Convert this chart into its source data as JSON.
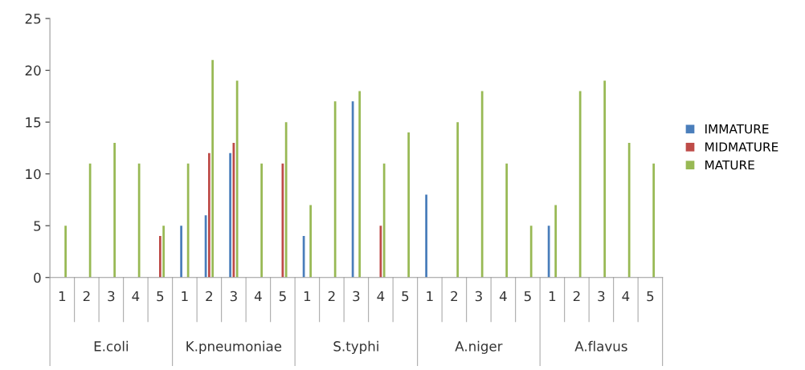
{
  "chart_data": {
    "type": "bar",
    "categories": [
      "1",
      "2",
      "3",
      "4",
      "5",
      "1",
      "2",
      "3",
      "4",
      "5",
      "1",
      "2",
      "3",
      "4",
      "5",
      "1",
      "2",
      "3",
      "4",
      "5",
      "1",
      "2",
      "3",
      "4",
      "5"
    ],
    "annotations": [
      "E.coli",
      "K.pneumoniae",
      "S.typhi",
      "A.niger",
      "A.flavus"
    ],
    "series": [
      {
        "name": "IMMATURE",
        "color": "#4a7ebb",
        "values": [
          0,
          0,
          0,
          0,
          0,
          5,
          6,
          12,
          0,
          0,
          4,
          0,
          17,
          0,
          0,
          8,
          0,
          0,
          0,
          0,
          5,
          0,
          0,
          0,
          0
        ]
      },
      {
        "name": "MIDMATURE",
        "color": "#be4b48",
        "values": [
          0,
          0,
          0,
          0,
          4,
          0,
          12,
          13,
          0,
          11,
          0,
          0,
          0,
          5,
          0,
          0,
          0,
          0,
          0,
          0,
          0,
          0,
          0,
          0,
          0
        ]
      },
      {
        "name": "MATURE",
        "color": "#98b954",
        "values": [
          5,
          11,
          13,
          11,
          5,
          11,
          21,
          19,
          11,
          15,
          7,
          17,
          18,
          11,
          14,
          0,
          15,
          18,
          11,
          5,
          7,
          18,
          19,
          13,
          11
        ]
      }
    ],
    "ylim": [
      0,
      25
    ],
    "yticks": [
      0,
      5,
      10,
      15,
      20,
      25
    ],
    "grid": false,
    "legend": "right"
  }
}
